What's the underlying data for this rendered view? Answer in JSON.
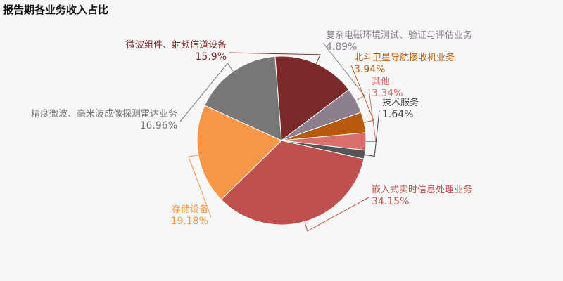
{
  "chart_data": {
    "type": "pie",
    "title": "报告期各业务收入占比",
    "slices": [
      {
        "label": "嵌入式实时信息处理业务",
        "value": 34.15,
        "value_label": "34.15%",
        "color": "#c0504d"
      },
      {
        "label": "存储设备",
        "value": 19.18,
        "value_label": "19.18%",
        "color": "#f79646"
      },
      {
        "label": "精度微波、毫米波成像探测雷达业务",
        "value": 16.96,
        "value_label": "16.96%",
        "color": "#777777"
      },
      {
        "label": "微波组件、射频信道设备",
        "value": 15.9,
        "value_label": "15.9%",
        "color": "#7b2a2a"
      },
      {
        "label": "复杂电磁环境测试、验证与评估业务",
        "value": 4.89,
        "value_label": "4.89%",
        "color": "#8c7f8e"
      },
      {
        "label": "北斗卫星导航接收机业务",
        "value": 3.94,
        "value_label": "3.94%",
        "color": "#b85a0d"
      },
      {
        "label": "其他",
        "value": 3.34,
        "value_label": "3.34%",
        "color": "#d9706b"
      },
      {
        "label": "技术服务",
        "value": 1.64,
        "value_label": "1.64%",
        "color": "#555555"
      }
    ],
    "label_colors": [
      "#c0504d",
      "#f79646",
      "#777777",
      "#7b2a2a",
      "#8c7f8e",
      "#b85a0d",
      "#d9706b",
      "#444444"
    ],
    "legend": "none"
  }
}
